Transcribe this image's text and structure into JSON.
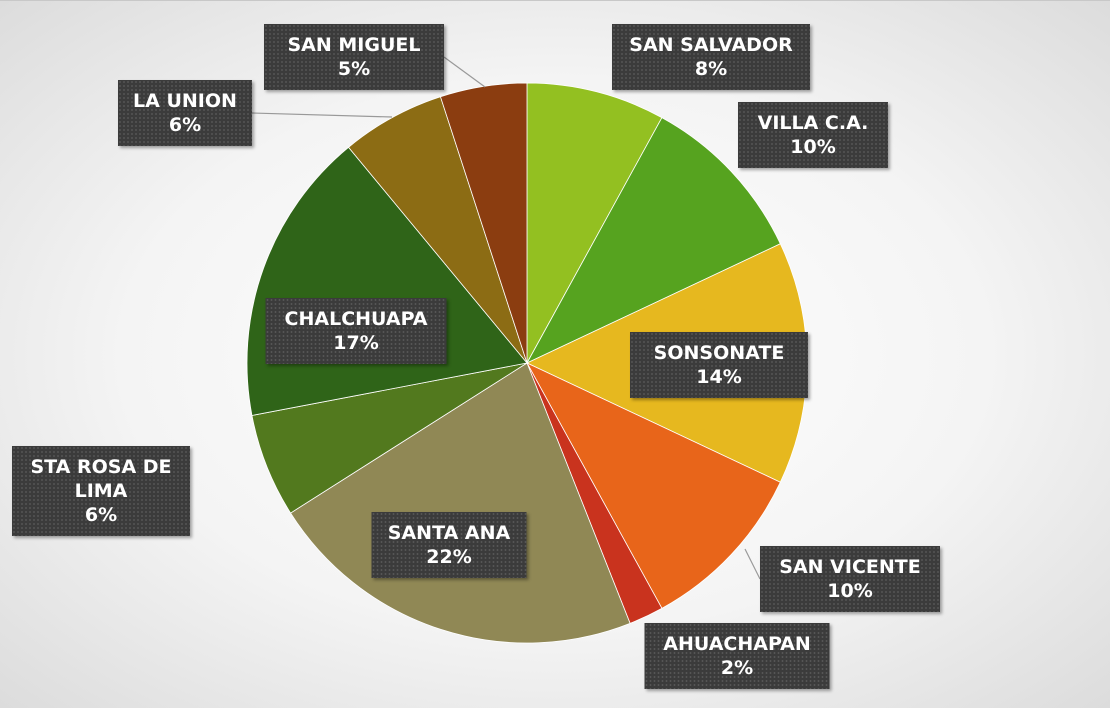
{
  "chart_data": {
    "type": "pie",
    "categories": [
      "SAN SALVADOR",
      "VILLA C.A.",
      "SONSONATE",
      "SAN VICENTE",
      "AHUACHAPAN",
      "SANTA ANA",
      "STA ROSA DE LIMA",
      "CHALCHUAPA",
      "LA UNION",
      "SAN MIGUEL"
    ],
    "values": [
      8,
      10,
      14,
      10,
      2,
      22,
      6,
      17,
      6,
      5
    ],
    "value_labels": [
      "8%",
      "10%",
      "14%",
      "10%",
      "2%",
      "22%",
      "6%",
      "17%",
      "6%",
      "5%"
    ],
    "colors": [
      "#93c021",
      "#56a31f",
      "#e6b81f",
      "#e8651a",
      "#c9331e",
      "#908855",
      "#52791e",
      "#2f6418",
      "#8c6c14",
      "#8b3d10"
    ]
  }
}
